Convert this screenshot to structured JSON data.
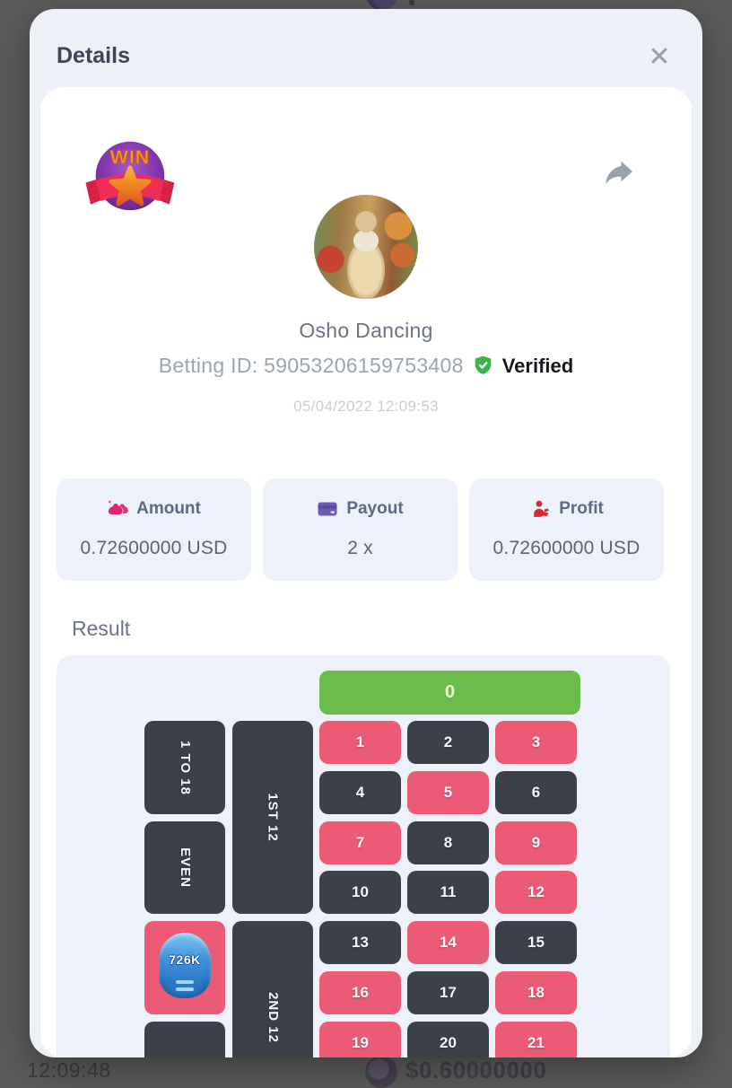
{
  "overlay_background": {
    "time": "12:09:48",
    "balance": "$0.60000000"
  },
  "modal": {
    "title": "Details",
    "close_glyph": "✕",
    "win_badge_text": "WIN",
    "user": {
      "name": "Osho Dancing",
      "betting_id": "Betting ID: 59053206159753408",
      "verified": "Verified",
      "timestamp": "05/04/2022 12:09:53"
    },
    "stats": [
      {
        "label": "Amount",
        "value": "0.72600000 USD",
        "icon": "money-bag-icon"
      },
      {
        "label": "Payout",
        "value": "2 x",
        "icon": "credit-card-icon"
      },
      {
        "label": "Profit",
        "value": "0.72600000 USD",
        "icon": "hand-coin-icon"
      }
    ],
    "result_title": "Result",
    "roulette": {
      "zero_label": "0",
      "chip_label": "726K",
      "outside_bets": [
        {
          "label": "1 TO 18",
          "color": "dark"
        },
        {
          "label": "EVEN",
          "color": "dark"
        },
        {
          "label": "",
          "color": "red",
          "has_chip": true
        },
        {
          "label": "",
          "color": "dark"
        }
      ],
      "dozens": [
        {
          "label": "1ST 12"
        },
        {
          "label": "2ND 12"
        }
      ],
      "numbers": [
        {
          "n": "1",
          "c": "red"
        },
        {
          "n": "2",
          "c": "dark"
        },
        {
          "n": "3",
          "c": "red"
        },
        {
          "n": "4",
          "c": "dark"
        },
        {
          "n": "5",
          "c": "red"
        },
        {
          "n": "6",
          "c": "dark"
        },
        {
          "n": "7",
          "c": "red"
        },
        {
          "n": "8",
          "c": "dark"
        },
        {
          "n": "9",
          "c": "red"
        },
        {
          "n": "10",
          "c": "dark"
        },
        {
          "n": "11",
          "c": "dark"
        },
        {
          "n": "12",
          "c": "red"
        },
        {
          "n": "13",
          "c": "dark"
        },
        {
          "n": "14",
          "c": "red"
        },
        {
          "n": "15",
          "c": "dark"
        },
        {
          "n": "16",
          "c": "red"
        },
        {
          "n": "17",
          "c": "dark"
        },
        {
          "n": "18",
          "c": "red"
        },
        {
          "n": "19",
          "c": "red"
        },
        {
          "n": "20",
          "c": "dark"
        },
        {
          "n": "21",
          "c": "red"
        }
      ]
    }
  },
  "colors": {
    "page_background": "#5b5b5b",
    "modal_background": "#edf0f7",
    "card_background": "#ffffff",
    "panel_background": "#edf1f9",
    "red_cell": "#ec5b76",
    "dark_cell": "#3b404b",
    "green_cell": "#6abc4b",
    "verified_green": "#3bb54a",
    "amount_icon_pink": "#e0266e",
    "payout_icon_purple": "#6c5bb5",
    "profit_icon_red": "#d7282f"
  }
}
